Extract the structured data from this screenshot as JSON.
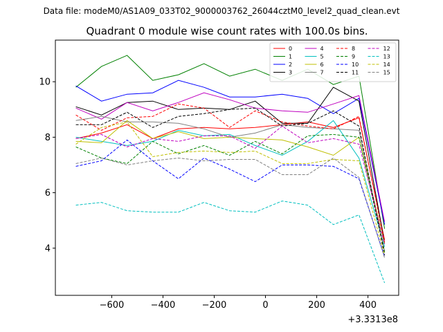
{
  "figure": {
    "suptitle": "Data file: modeM0/AS1A09_033T02_9000003762_26044cztM0_level2_quad_clean.evt"
  },
  "chart_data": {
    "type": "line",
    "title": "Quadrant 0 module wise count rates with 100.0s bins.",
    "xlabel": "",
    "ylabel": "",
    "x_offset_label": "+3.3313e8",
    "xlim": [
      -820,
      520
    ],
    "ylim": [
      2.3,
      11.5
    ],
    "xticks": [
      -600,
      -400,
      -200,
      0,
      200,
      400
    ],
    "xtick_labels": [
      "−600",
      "−400",
      "−200",
      "0",
      "200",
      "400"
    ],
    "yticks": [
      4,
      6,
      8,
      10
    ],
    "ytick_labels": [
      "4",
      "6",
      "8",
      "10"
    ],
    "legend": {
      "placement": "top-right",
      "columns": 4
    },
    "x": [
      -740,
      -640,
      -540,
      -440,
      -340,
      -240,
      -140,
      -40,
      65,
      165,
      265,
      365,
      465
    ],
    "series": [
      {
        "name": "0",
        "color": "#ff0000",
        "dash": false,
        "values": [
          7.95,
          8.15,
          8.45,
          7.95,
          8.3,
          8.35,
          8.3,
          8.35,
          8.45,
          8.55,
          8.35,
          8.7,
          4.3
        ]
      },
      {
        "name": "1",
        "color": "#008000",
        "dash": false,
        "values": [
          9.8,
          10.55,
          10.95,
          10.05,
          10.25,
          10.65,
          10.2,
          10.45,
          10.05,
          10.45,
          9.9,
          10.2,
          4.7
        ]
      },
      {
        "name": "2",
        "color": "#0000ff",
        "dash": false,
        "values": [
          9.85,
          9.3,
          9.55,
          9.6,
          10.05,
          9.8,
          9.45,
          9.45,
          9.55,
          9.4,
          8.85,
          9.4,
          4.85
        ]
      },
      {
        "name": "3",
        "color": "#000000",
        "dash": false,
        "values": [
          9.1,
          8.8,
          9.25,
          9.3,
          9.0,
          9.05,
          9.0,
          9.3,
          8.5,
          8.5,
          9.8,
          9.3,
          4.2
        ]
      },
      {
        "name": "4",
        "color": "#bf00bf",
        "dash": false,
        "values": [
          9.05,
          8.65,
          9.25,
          8.95,
          9.25,
          9.6,
          9.35,
          9.05,
          8.95,
          8.9,
          9.2,
          9.5,
          4.95
        ]
      },
      {
        "name": "5",
        "color": "#00bfbf",
        "dash": false,
        "values": [
          8.0,
          7.85,
          7.7,
          7.85,
          8.25,
          8.05,
          8.1,
          7.7,
          7.35,
          7.85,
          8.6,
          7.25,
          4.05
        ]
      },
      {
        "name": "6",
        "color": "#bfbf00",
        "dash": false,
        "values": [
          7.85,
          7.8,
          8.6,
          7.95,
          8.2,
          7.95,
          8.0,
          7.95,
          7.9,
          7.65,
          7.35,
          8.0,
          4.15
        ]
      },
      {
        "name": "7",
        "color": "#808080",
        "dash": false,
        "values": [
          8.6,
          8.75,
          8.55,
          8.55,
          8.5,
          8.3,
          8.0,
          8.15,
          8.45,
          8.35,
          8.3,
          8.25,
          3.9
        ]
      },
      {
        "name": "8",
        "color": "#ff0000",
        "dash": true,
        "values": [
          8.8,
          8.25,
          8.7,
          8.75,
          9.2,
          9.05,
          8.35,
          8.95,
          8.55,
          8.4,
          8.3,
          8.75,
          4.2
        ]
      },
      {
        "name": "9",
        "color": "#008000",
        "dash": true,
        "values": [
          7.65,
          7.25,
          7.05,
          7.85,
          7.4,
          7.7,
          7.35,
          7.85,
          7.4,
          8.05,
          8.1,
          8.0,
          3.85
        ]
      },
      {
        "name": "10",
        "color": "#0000ff",
        "dash": true,
        "values": [
          6.95,
          7.15,
          7.9,
          7.15,
          6.5,
          7.25,
          6.85,
          6.4,
          7.0,
          7.0,
          6.95,
          6.5,
          3.7
        ]
      },
      {
        "name": "11",
        "color": "#000000",
        "dash": true,
        "values": [
          8.45,
          8.45,
          8.9,
          8.35,
          8.75,
          8.85,
          9.0,
          9.05,
          8.4,
          8.5,
          8.95,
          8.4,
          3.75
        ]
      },
      {
        "name": "12",
        "color": "#bf00bf",
        "dash": true,
        "values": [
          7.95,
          8.1,
          7.65,
          7.95,
          7.85,
          8.05,
          8.05,
          7.6,
          8.4,
          7.8,
          7.95,
          7.75,
          4.15
        ]
      },
      {
        "name": "13",
        "color": "#00bfbf",
        "dash": true,
        "values": [
          5.55,
          5.65,
          5.35,
          5.3,
          5.3,
          5.65,
          5.35,
          5.3,
          5.7,
          5.55,
          4.85,
          5.2,
          2.75
        ]
      },
      {
        "name": "14",
        "color": "#bfbf00",
        "dash": true,
        "values": [
          7.75,
          8.35,
          8.55,
          7.3,
          7.45,
          7.5,
          7.45,
          7.5,
          7.05,
          7.05,
          7.2,
          7.15,
          3.75
        ]
      },
      {
        "name": "15",
        "color": "#808080",
        "dash": true,
        "values": [
          7.05,
          7.25,
          7.0,
          7.15,
          7.25,
          7.15,
          7.2,
          7.2,
          6.65,
          6.65,
          7.25,
          6.55,
          3.65
        ]
      }
    ]
  }
}
